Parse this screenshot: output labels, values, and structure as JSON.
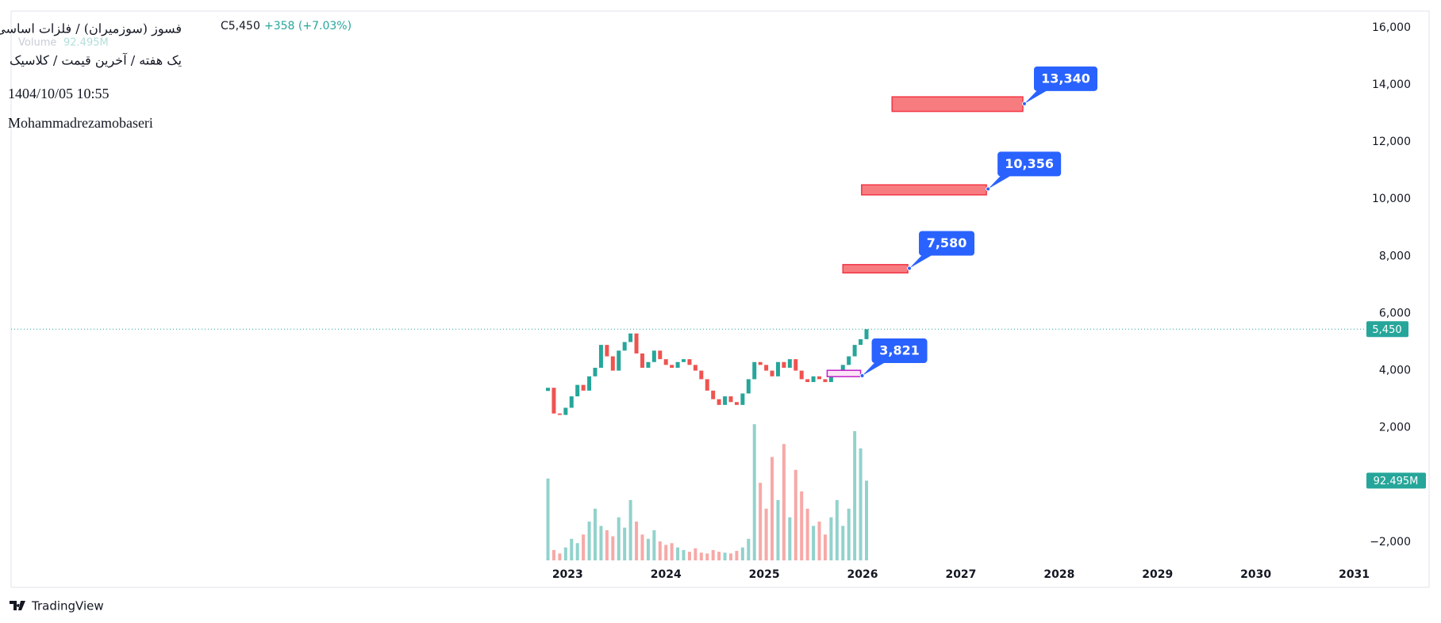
{
  "chart_data": {
    "type": "candlestick",
    "header": {
      "symbol": "فسوز (سوزمیران) / فلزات اساسی",
      "close": "C5,450",
      "change": "+358 (+7.03%)",
      "volume_title": "Volume"
    },
    "subtitle": "یک هفته / آخرین قیمت / کلاسیک",
    "date": "1404/10/05 10:55",
    "author": "Mohammadrezamobaseri",
    "brand": "TradingView",
    "up_color": "#26a69a",
    "down_color": "#ef5350",
    "x": [
      2022.8,
      2022.86,
      2022.92,
      2022.98,
      2023.04,
      2023.1,
      2023.16,
      2023.22,
      2023.28,
      2023.34,
      2023.4,
      2023.46,
      2023.52,
      2023.58,
      2023.64,
      2023.7,
      2023.76,
      2023.82,
      2023.88,
      2023.94,
      2024.0,
      2024.06,
      2024.12,
      2024.18,
      2024.24,
      2024.3,
      2024.36,
      2024.42,
      2024.48,
      2024.54,
      2024.6,
      2024.66,
      2024.72,
      2024.78,
      2024.84,
      2024.9,
      2024.96,
      2025.02,
      2025.08,
      2025.14,
      2025.2,
      2025.26,
      2025.32,
      2025.38,
      2025.44,
      2025.5,
      2025.56,
      2025.62,
      2025.68,
      2025.74,
      2025.8,
      2025.86,
      2025.92,
      2025.98,
      2026.04
    ],
    "close": [
      3400,
      2500,
      2450,
      2700,
      3100,
      3500,
      3300,
      3800,
      4100,
      4900,
      4500,
      4000,
      4700,
      5000,
      5300,
      4600,
      4100,
      4300,
      4700,
      4400,
      4200,
      4100,
      4300,
      4400,
      4200,
      4000,
      3700,
      3300,
      3000,
      2800,
      3100,
      2900,
      2800,
      3200,
      3700,
      4300,
      4200,
      4000,
      3800,
      4300,
      4100,
      4400,
      4000,
      3700,
      3600,
      3800,
      3700,
      3600,
      3900,
      4000,
      4200,
      4500,
      4900,
      5100,
      5450
    ],
    "volume": [
      95,
      12,
      8,
      15,
      25,
      20,
      30,
      45,
      60,
      40,
      35,
      28,
      50,
      38,
      70,
      45,
      30,
      25,
      35,
      22,
      18,
      20,
      15,
      12,
      10,
      14,
      9,
      8,
      12,
      10,
      9,
      8,
      11,
      15,
      25,
      158,
      90,
      60,
      120,
      70,
      135,
      50,
      105,
      80,
      60,
      40,
      45,
      30,
      50,
      70,
      40,
      60,
      150,
      130,
      92.495
    ],
    "volume_ylim": [
      0,
      160
    ],
    "volume_last": {
      "value": 92.495,
      "label": "92.495M"
    },
    "last_price": {
      "value": 5450,
      "label": "5,450"
    },
    "zones": [
      {
        "value": 3821,
        "label": "3,821",
        "top": 4010,
        "bottom": 3790,
        "x0": 2025.64,
        "x1": 2025.98,
        "fill": "#fce4f6",
        "stroke": "#c020c8"
      },
      {
        "value": 7580,
        "label": "7,580",
        "top": 7710,
        "bottom": 7420,
        "x0": 2025.8,
        "x1": 2026.46,
        "fill": "#f77c80",
        "stroke": "#f23645"
      },
      {
        "value": 10356,
        "label": "10,356",
        "top": 10500,
        "bottom": 10150,
        "x0": 2025.99,
        "x1": 2027.26,
        "fill": "#f77c80",
        "stroke": "#f23645"
      },
      {
        "value": 13340,
        "label": "13,340",
        "top": 13580,
        "bottom": 13070,
        "x0": 2026.3,
        "x1": 2027.63,
        "fill": "#f77c80",
        "stroke": "#f23645"
      }
    ],
    "callout_color": "#2962ff",
    "xlim": [
      2017.34,
      2031.06
    ],
    "xticks": [
      2023,
      2024,
      2025,
      2026,
      2027,
      2028,
      2029,
      2030,
      2031
    ],
    "ylim": [
      -2640,
      16580
    ],
    "yticks": [
      {
        "value": 16000,
        "label": "16,000"
      },
      {
        "value": 14000,
        "label": "14,000"
      },
      {
        "value": 12000,
        "label": "12,000"
      },
      {
        "value": 10000,
        "label": "10,000"
      },
      {
        "value": 8000,
        "label": "8,000"
      },
      {
        "value": 6000,
        "label": "6,000"
      },
      {
        "value": 4000,
        "label": "4,000"
      },
      {
        "value": 2000,
        "label": "2,000"
      },
      {
        "value": -2000,
        "label": "−2,000"
      }
    ]
  }
}
